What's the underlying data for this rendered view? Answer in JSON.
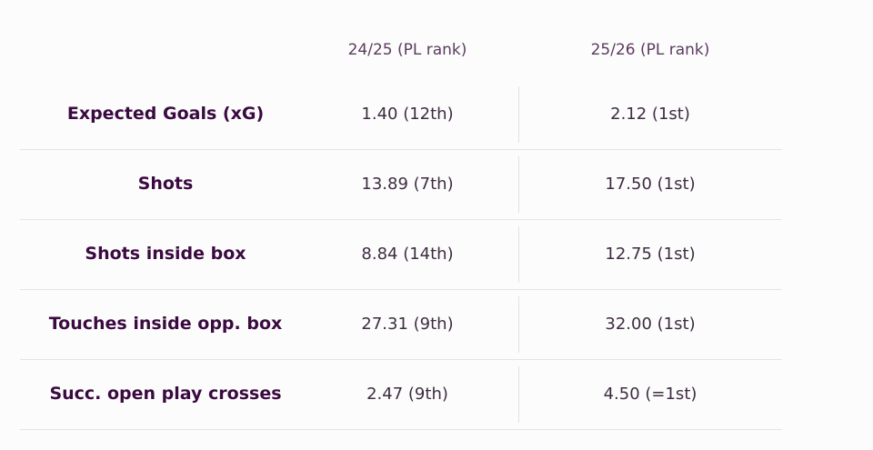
{
  "header": {
    "col1": "24/25 (PL rank)",
    "col2": "25/26 (PL rank)"
  },
  "rows": [
    {
      "label": "Expected Goals (xG)",
      "v1": "1.40 (12th)",
      "v2": "2.12 (1st)"
    },
    {
      "label": "Shots",
      "v1": "13.89 (7th)",
      "v2": "17.50 (1st)"
    },
    {
      "label": "Shots inside box",
      "v1": "8.84 (14th)",
      "v2": "12.75 (1st)"
    },
    {
      "label": "Touches inside opp. box",
      "v1": "27.31 (9th)",
      "v2": "32.00 (1st)"
    },
    {
      "label": "Succ. open play crosses",
      "v1": "2.47 (9th)",
      "v2": "4.50 (=1st)"
    }
  ]
}
